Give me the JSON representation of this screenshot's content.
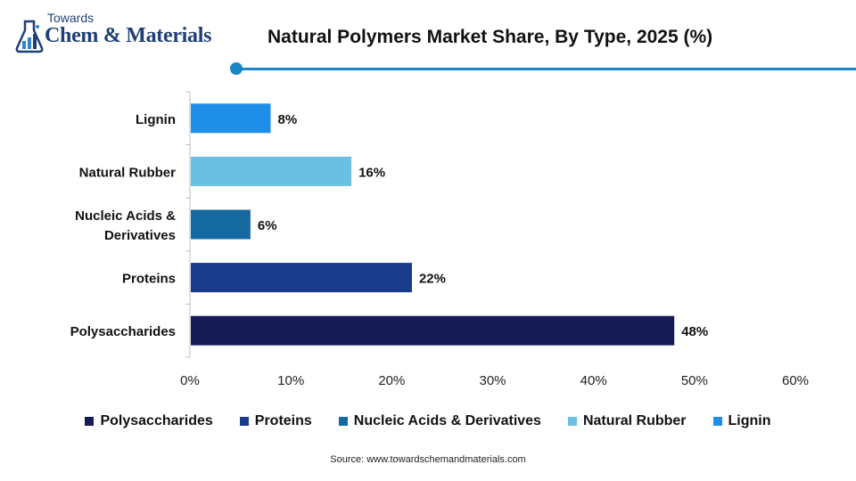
{
  "logo": {
    "top_text": "Towards",
    "main_text": "Chem & Materials"
  },
  "header": {
    "title": "Natural Polymers Market Share, By Type, 2025 (%)"
  },
  "colors": {
    "accent": "#1a86c8",
    "Polysaccharides": "#171b55",
    "Proteins": "#1a3a8c",
    "Nucleic Acids & Derivatives": "#146aa0",
    "Natural Rubber": "#6bbfe0",
    "Lignin": "#1f8ee8"
  },
  "chart_data": {
    "type": "bar",
    "orientation": "horizontal",
    "title": "Natural Polymers Market Share, By Type, 2025 (%)",
    "categories": [
      "Lignin",
      "Natural Rubber",
      "Nucleic Acids & Derivatives",
      "Proteins",
      "Polysaccharides"
    ],
    "category_lines": [
      [
        "Lignin"
      ],
      [
        "Natural Rubber"
      ],
      [
        "Nucleic Acids &",
        "Derivatives"
      ],
      [
        "Proteins"
      ],
      [
        "Polysaccharides"
      ]
    ],
    "values": [
      8,
      16,
      6,
      22,
      48
    ],
    "data_labels": [
      "8%",
      "16%",
      "6%",
      "22%",
      "48%"
    ],
    "xlim": [
      0,
      60
    ],
    "xticks": [
      0,
      10,
      20,
      30,
      40,
      50,
      60
    ],
    "xtick_labels": [
      "0%",
      "10%",
      "20%",
      "30%",
      "40%",
      "50%",
      "60%"
    ],
    "xlabel": "",
    "ylabel": "",
    "grid": false,
    "legend_position": "bottom",
    "legend": [
      "Polysaccharides",
      "Proteins",
      "Nucleic Acids & Derivatives",
      "Natural Rubber",
      "Lignin"
    ]
  },
  "footer": {
    "source": "Source: www.towardschemandmaterials.com"
  }
}
